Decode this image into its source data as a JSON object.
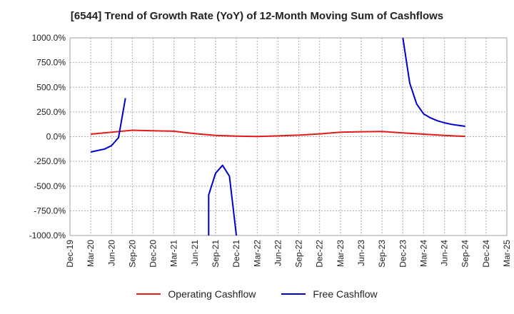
{
  "title": "[6544]  Trend of Growth Rate (YoY) of 12-Month Moving Sum of Cashflows",
  "chart_data": {
    "type": "line",
    "title": "[6544]  Trend of Growth Rate (YoY) of 12-Month Moving Sum of Cashflows",
    "xlabel": "",
    "ylabel": "",
    "ylim": [
      -1000,
      1000
    ],
    "y_ticks": [
      1000,
      750,
      500,
      250,
      0,
      -250,
      -500,
      -750,
      -1000
    ],
    "y_tick_labels": [
      "1000.0%",
      "750.0%",
      "500.0%",
      "250.0%",
      "0.0%",
      "-250.0%",
      "-500.0%",
      "-750.0%",
      "-1000.0%"
    ],
    "x_tick_labels": [
      "Dec-19",
      "Mar-20",
      "Jun-20",
      "Sep-20",
      "Dec-20",
      "Mar-21",
      "Jun-21",
      "Sep-21",
      "Dec-21",
      "Mar-22",
      "Jun-22",
      "Sep-22",
      "Dec-22",
      "Mar-23",
      "Jun-23",
      "Sep-23",
      "Dec-23",
      "Mar-24",
      "Jun-24",
      "Sep-24",
      "Dec-24",
      "Mar-25"
    ],
    "grid": true,
    "legend_position": "bottom",
    "series": [
      {
        "name": "Operating Cashflow",
        "color": "#e31a1c",
        "points": [
          [
            "2020-03",
            25
          ],
          [
            "2020-06",
            45
          ],
          [
            "2020-09",
            65
          ],
          [
            "2020-12",
            60
          ],
          [
            "2021-03",
            55
          ],
          [
            "2021-06",
            30
          ],
          [
            "2021-09",
            12
          ],
          [
            "2021-12",
            5
          ],
          [
            "2022-03",
            2
          ],
          [
            "2022-06",
            8
          ],
          [
            "2022-09",
            15
          ],
          [
            "2022-12",
            28
          ],
          [
            "2023-03",
            45
          ],
          [
            "2023-06",
            50
          ],
          [
            "2023-09",
            52
          ],
          [
            "2023-12",
            38
          ],
          [
            "2024-03",
            25
          ],
          [
            "2024-06",
            12
          ],
          [
            "2024-09",
            3
          ]
        ]
      },
      {
        "name": "Free Cashflow",
        "color": "#0000cc",
        "segments": [
          [
            [
              "2020-03",
              -155
            ],
            [
              "2020-04",
              -140
            ],
            [
              "2020-05",
              -125
            ],
            [
              "2020-06",
              -90
            ],
            [
              "2020-07",
              -10
            ],
            [
              "2020-08",
              390
            ]
          ],
          [
            [
              "2021-08",
              -1000
            ],
            [
              "2021-08",
              -590
            ],
            [
              "2021-09",
              -370
            ],
            [
              "2021-10",
              -290
            ],
            [
              "2021-11",
              -400
            ],
            [
              "2021-12",
              -1000
            ]
          ],
          [
            [
              "2023-12",
              1000
            ],
            [
              "2024-01",
              540
            ],
            [
              "2024-02",
              330
            ],
            [
              "2024-03",
              230
            ],
            [
              "2024-04",
              190
            ],
            [
              "2024-05",
              160
            ],
            [
              "2024-06",
              140
            ],
            [
              "2024-07",
              125
            ],
            [
              "2024-08",
              115
            ],
            [
              "2024-09",
              105
            ]
          ]
        ]
      }
    ]
  },
  "legend": {
    "operating": "Operating Cashflow",
    "free": "Free Cashflow"
  }
}
